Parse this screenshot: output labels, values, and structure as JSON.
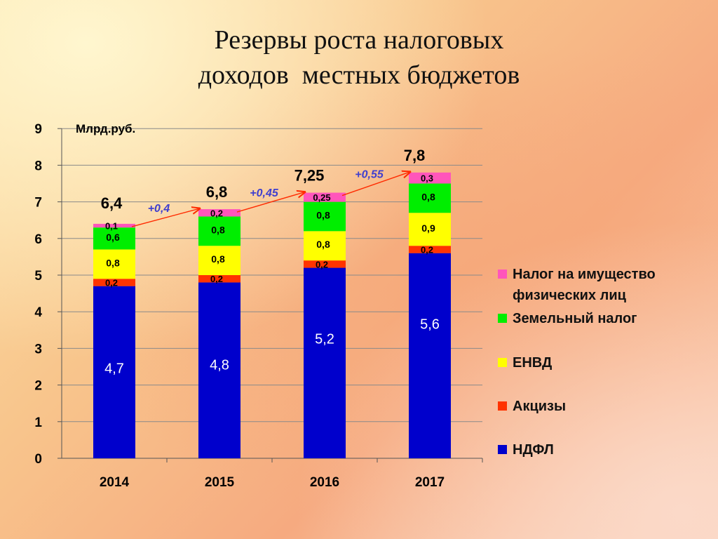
{
  "title": {
    "line1": "Резервы роста налоговых",
    "line2": "доходов  местных бюджетов"
  },
  "chart_data": {
    "type": "bar",
    "stacked": true,
    "unit_label": "Млрд.руб.",
    "categories": [
      "2014",
      "2015",
      "2016",
      "2017"
    ],
    "ylim": [
      0,
      9
    ],
    "yticks": [
      "0",
      "1",
      "2",
      "3",
      "4",
      "5",
      "6",
      "7",
      "8",
      "9"
    ],
    "grid": true,
    "legend_position": "right",
    "series": [
      {
        "name": "НДФЛ",
        "color": "#0000cc",
        "values": [
          4.7,
          4.8,
          5.2,
          5.6
        ],
        "labels": [
          "4,7",
          "4,8",
          "5,2",
          "5,6"
        ]
      },
      {
        "name": "Акцизы",
        "color": "#ff3300",
        "values": [
          0.2,
          0.2,
          0.2,
          0.2
        ],
        "labels": [
          "0,2",
          "0,2",
          "0,2",
          "0,2"
        ]
      },
      {
        "name": "ЕНВД",
        "color": "#ffff00",
        "values": [
          0.8,
          0.8,
          0.8,
          0.9
        ],
        "labels": [
          "0,8",
          "0,8",
          "0,8",
          "0,9"
        ]
      },
      {
        "name": "Земельный налог",
        "color": "#00ee00",
        "values": [
          0.6,
          0.8,
          0.8,
          0.8
        ],
        "labels": [
          "0,6",
          "0,8",
          "0,8",
          "0,8"
        ]
      },
      {
        "name": "Налог на имущество физических лиц",
        "color": "#ff55bb",
        "values": [
          0.1,
          0.2,
          0.25,
          0.3
        ],
        "labels": [
          "0,1",
          "0,2",
          "0,25",
          "0,3"
        ]
      }
    ],
    "totals": [
      "6,4",
      "6,8",
      "7,25",
      "7,8"
    ],
    "increments": [
      "+0,4",
      "+0,45",
      "+0,55"
    ]
  },
  "legend": [
    {
      "line1": "Налог на имущество",
      "line2": "физических лиц",
      "color": "#ff55bb"
    },
    {
      "line1": "Земельный налог",
      "line2": "",
      "color": "#00ee00"
    },
    {
      "line1": "ЕНВД",
      "line2": "",
      "color": "#ffff00"
    },
    {
      "line1": "Акцизы",
      "line2": "",
      "color": "#ff3300"
    },
    {
      "line1": "НДФЛ",
      "line2": "",
      "color": "#0000cc"
    }
  ]
}
